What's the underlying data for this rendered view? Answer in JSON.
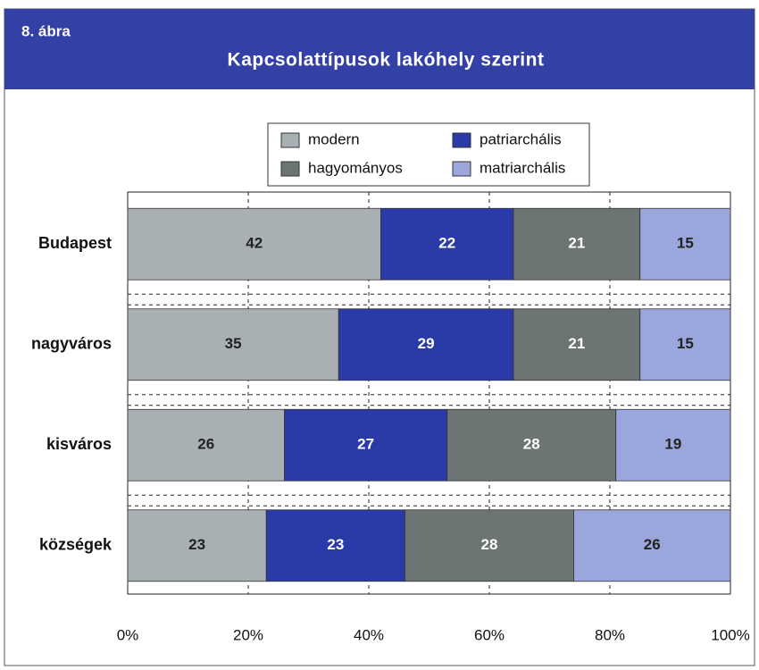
{
  "chart_data": {
    "type": "stacked_bar_horizontal",
    "figure_label": "8. ábra",
    "title": "Kapcsolattípusok lakóhely szerint",
    "categories": [
      "Budapest",
      "nagyváros",
      "kisváros",
      "községek"
    ],
    "series": [
      {
        "name": "modern",
        "color": "#a9b0b3",
        "values": [
          42,
          35,
          26,
          23
        ]
      },
      {
        "name": "patriarchális",
        "color": "#2a3aa8",
        "values": [
          22,
          29,
          27,
          23
        ]
      },
      {
        "name": "hagyományos",
        "color": "#6d7574",
        "values": [
          21,
          21,
          28,
          28
        ]
      },
      {
        "name": "matriarchális",
        "color": "#9ba6dd",
        "values": [
          15,
          15,
          19,
          26
        ]
      }
    ],
    "xlim": [
      0,
      100
    ],
    "xticks": [
      {
        "value": 0,
        "label": "0%"
      },
      {
        "value": 20,
        "label": "20%"
      },
      {
        "value": 40,
        "label": "40%"
      },
      {
        "value": 60,
        "label": "60%"
      },
      {
        "value": 80,
        "label": "80%"
      },
      {
        "value": 100,
        "label": "100%"
      }
    ],
    "grid": true
  }
}
